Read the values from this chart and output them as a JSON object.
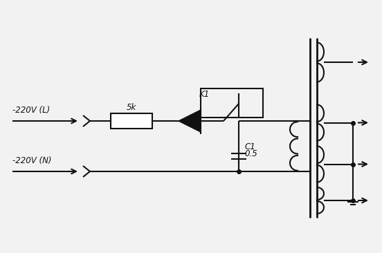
{
  "bg_color": "#f2f2f2",
  "line_color": "#111111",
  "line_width": 1.5,
  "figsize": [
    5.52,
    3.66
  ],
  "dpi": 100,
  "label_L": "-220V (L)",
  "label_N": "-220V (N)",
  "label_R": "5k",
  "label_K": "K1",
  "label_C1": "C1",
  "label_C2": "0.5",
  "font_size": 8.5,
  "font_style": "italic"
}
